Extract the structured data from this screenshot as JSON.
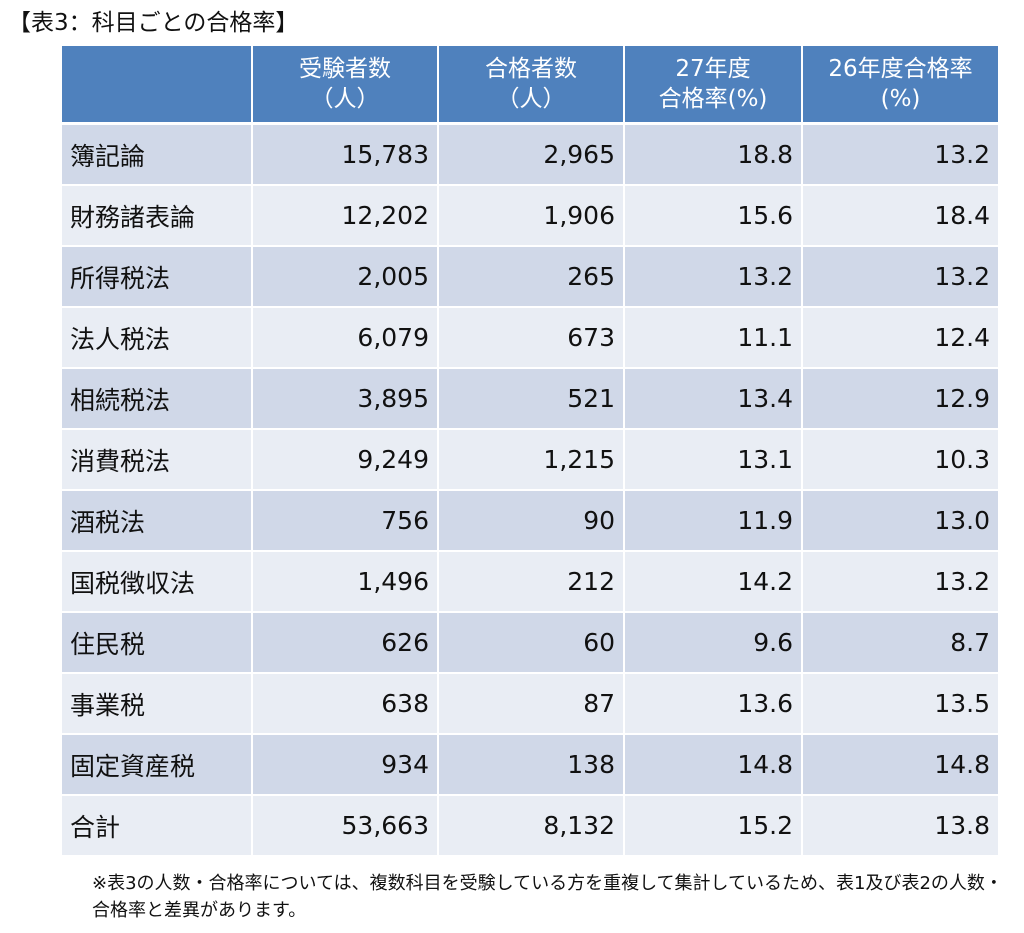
{
  "title": "【表3：科目ごとの合格率】",
  "table": {
    "headers": [
      [
        ""
      ],
      [
        "受験者数",
        "（人）"
      ],
      [
        "合格者数",
        "（人）"
      ],
      [
        "27年度",
        "合格率(%)"
      ],
      [
        "26年度合格率",
        "(%)"
      ]
    ],
    "rows": [
      [
        "簿記論",
        "15,783",
        "2,965",
        "18.8",
        "13.2"
      ],
      [
        "財務諸表論",
        "12,202",
        "1,906",
        "15.6",
        "18.4"
      ],
      [
        "所得税法",
        "2,005",
        "265",
        "13.2",
        "13.2"
      ],
      [
        "法人税法",
        "6,079",
        "673",
        "11.1",
        "12.4"
      ],
      [
        "相続税法",
        "3,895",
        "521",
        "13.4",
        "12.9"
      ],
      [
        "消費税法",
        "9,249",
        "1,215",
        "13.1",
        "10.3"
      ],
      [
        "酒税法",
        "756",
        "90",
        "11.9",
        "13.0"
      ],
      [
        "国税徴収法",
        "1,496",
        "212",
        "14.2",
        "13.2"
      ],
      [
        "住民税",
        "626",
        "60",
        "9.6",
        "8.7"
      ],
      [
        "事業税",
        "638",
        "87",
        "13.6",
        "13.5"
      ],
      [
        "固定資産税",
        "934",
        "138",
        "14.8",
        "14.8"
      ],
      [
        "合計",
        "53,663",
        "8,132",
        "15.2",
        "13.8"
      ]
    ]
  },
  "note": "※表3の人数・合格率については、複数科目を受験している方を重複して集計しているため、表1及び表2の人数・合格率と差異があります。",
  "colors": {
    "header_bg": "#4f81bd",
    "row_dark": "#d0d8e8",
    "row_light": "#e9edf4"
  }
}
